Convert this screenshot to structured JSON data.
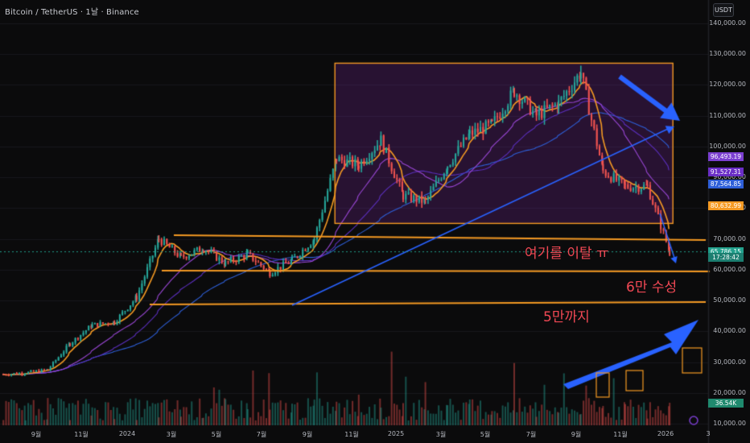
{
  "header": {
    "title": "Bitcoin / TetherUS · 1날 · Binance"
  },
  "currency_button": "USDT",
  "annotations": {
    "break_text": "여기를 이탈 ㅠ",
    "support_60k": "6만 수성",
    "target_50k": "5만까지"
  },
  "price_tags": [
    {
      "text": "96,493.19",
      "price": 96493.19,
      "color": "#7b3fd0"
    },
    {
      "text": "91,527.31",
      "price": 91527.31,
      "color": "#6a2ec6"
    },
    {
      "text": "87,564.85",
      "price": 87564.85,
      "color": "#2e5fd8"
    },
    {
      "text": "80,632.99",
      "price": 80632.99,
      "color": "#f59a23"
    },
    {
      "text": "65,786.15",
      "price": 65786.15,
      "color": "#22a08c"
    },
    {
      "text": "17:28:42",
      "price": 63900,
      "color": "#1c7e70"
    },
    {
      "text": "36.54K",
      "price": 16500,
      "color": "#1f8a6e"
    }
  ],
  "chart_data": {
    "type": "candlestick",
    "title": "Bitcoin / TetherUS · 1날 · Binance",
    "y_ticks": [
      "140,000.00",
      "130,000.00",
      "120,000.00",
      "110,000.00",
      "100,000.00",
      "90,000.00",
      "80,000.00",
      "70,000.00",
      "60,000.00",
      "50,000.00",
      "40,000.00",
      "30,000.00",
      "20,000.00",
      "10,000.00"
    ],
    "x_ticks": [
      "9월",
      "11월",
      "2024",
      "3월",
      "5월",
      "7월",
      "9월",
      "11월",
      "2025",
      "3월",
      "5월",
      "7월",
      "9월",
      "11월",
      "2026",
      "3"
    ],
    "ylim": [
      10000,
      140000
    ],
    "price_path": [
      [
        "2023-08",
        26000
      ],
      [
        "2023-09",
        26500
      ],
      [
        "2023-10",
        27500
      ],
      [
        "2023-11",
        36000
      ],
      [
        "2023-12",
        42000
      ],
      [
        "2024-01",
        43000
      ],
      [
        "2024-02",
        51000
      ],
      [
        "2024-03",
        70000
      ],
      [
        "2024-04",
        64000
      ],
      [
        "2024-05",
        67000
      ],
      [
        "2024-06",
        62000
      ],
      [
        "2024-07",
        65000
      ],
      [
        "2024-08",
        59000
      ],
      [
        "2024-09",
        63000
      ],
      [
        "2024-10",
        70000
      ],
      [
        "2024-11",
        96000
      ],
      [
        "2024-12",
        94000
      ],
      [
        "2025-01",
        102000
      ],
      [
        "2025-02",
        84000
      ],
      [
        "2025-03",
        82000
      ],
      [
        "2025-04",
        94000
      ],
      [
        "2025-05",
        104000
      ],
      [
        "2025-06",
        107000
      ],
      [
        "2025-07",
        118000
      ],
      [
        "2025-08",
        110000
      ],
      [
        "2025-09",
        114000
      ],
      [
        "2025-10",
        124000
      ],
      [
        "2025-11",
        92000
      ],
      [
        "2025-12",
        87000
      ],
      [
        "2026-01",
        87000
      ],
      [
        "2026-02",
        65786
      ]
    ],
    "horizontal_lines": [
      70000,
      59500,
      50000
    ],
    "highlight_box": {
      "x": [
        "2024-11",
        "2026-02"
      ],
      "y": [
        75000,
        127000
      ]
    },
    "series": [
      {
        "name": "MA",
        "color": "#f59a23"
      },
      {
        "name": "MA",
        "color": "#7b3fd0"
      },
      {
        "name": "MA",
        "color": "#2e5fd8"
      }
    ]
  },
  "colors": {
    "up": "#26a69a",
    "down": "#ef5350",
    "orange": "#f59a23",
    "blue": "#2962ff",
    "purple": "#7b3fd0"
  }
}
